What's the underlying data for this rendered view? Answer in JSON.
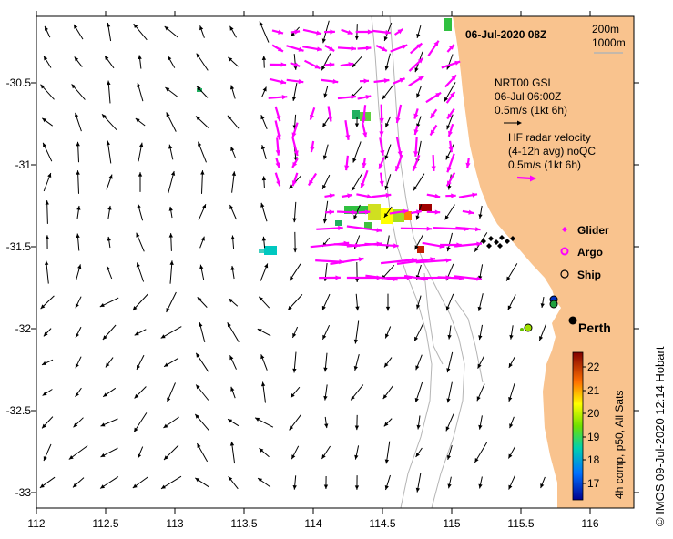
{
  "map": {
    "timestamp": "06-Jul-2020 08Z",
    "x_ticks": [
      "112",
      "112.5",
      "113",
      "113.5",
      "114",
      "114.5",
      "115",
      "115.5",
      "116"
    ],
    "y_ticks": [
      "-30.5",
      "-31",
      "-31.5",
      "-32",
      "-32.5",
      "-33"
    ],
    "isobath_legend": [
      "200m",
      "1000m"
    ],
    "model_legend": [
      "NRT00 GSL",
      "06-Jul 06:00Z",
      "0.5m/s (1kt 6h)"
    ],
    "radar_legend": [
      "HF radar velocity",
      "(4-12h avg) noQC",
      "0.5m/s (1kt 6h)"
    ],
    "markers": {
      "glider": "Glider",
      "argo": "Argo",
      "ship": "Ship"
    },
    "city": "Perth",
    "colorbar": {
      "ticks": [
        "22",
        "21",
        "20",
        "19",
        "18",
        "17"
      ],
      "label": "4h comp, p50, All Sats"
    },
    "credit": "© IMOS 09-Jul-2020 12:14 Hobart",
    "colors": {
      "land": "#f9c38e",
      "radar": "#ff00ff",
      "isobath": "#b4b4b4"
    }
  }
}
